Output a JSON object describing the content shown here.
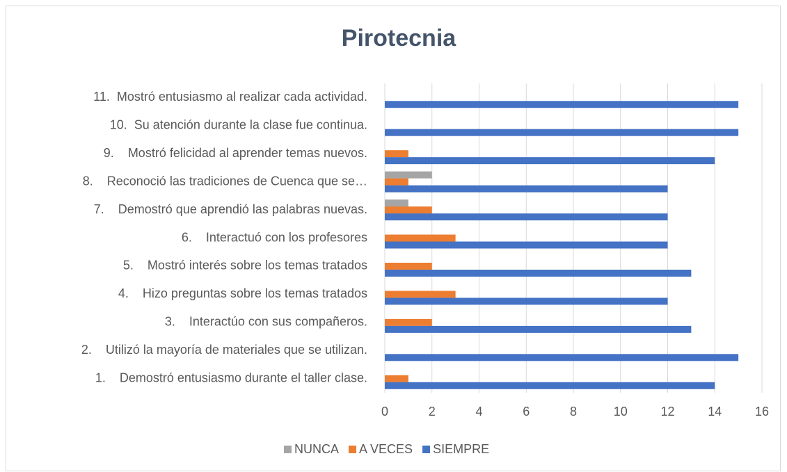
{
  "chart_data": {
    "type": "bar",
    "orientation": "horizontal",
    "title": "Pirotecnia",
    "categories": [
      "1.    Demostró entusiasmo durante el taller clase.",
      "2.    Utilizó la mayoría de materiales que se utilizan.",
      "3.    Interactúo con sus compañeros.",
      "4.    Hizo preguntas sobre los temas tratados",
      "5.    Mostró interés sobre los temas tratados",
      "6.    Interactuó con los profesores",
      "7.    Demostró que aprendió las palabras nuevas.",
      "8.    Reconoció las tradiciones de Cuenca que se…",
      "9.    Mostró felicidad al aprender temas nuevos.",
      "10.  Su atención durante la clase fue continua.",
      "11.  Mostró entusiasmo al realizar cada actividad."
    ],
    "series": [
      {
        "name": "NUNCA",
        "color": "#a5a5a5",
        "values": [
          0,
          0,
          0,
          0,
          0,
          0,
          1,
          2,
          0,
          0,
          0
        ]
      },
      {
        "name": "A VECES",
        "color": "#ed7d31",
        "values": [
          1,
          0,
          2,
          3,
          2,
          3,
          2,
          1,
          1,
          0,
          0
        ]
      },
      {
        "name": "SIEMPRE",
        "color": "#4472c4",
        "values": [
          14,
          15,
          13,
          12,
          13,
          12,
          12,
          12,
          14,
          15,
          15
        ]
      }
    ],
    "xlim": [
      0,
      16
    ],
    "xticks": [
      0,
      2,
      4,
      6,
      8,
      10,
      12,
      14,
      16
    ],
    "grid": true,
    "legend": "bottom"
  }
}
